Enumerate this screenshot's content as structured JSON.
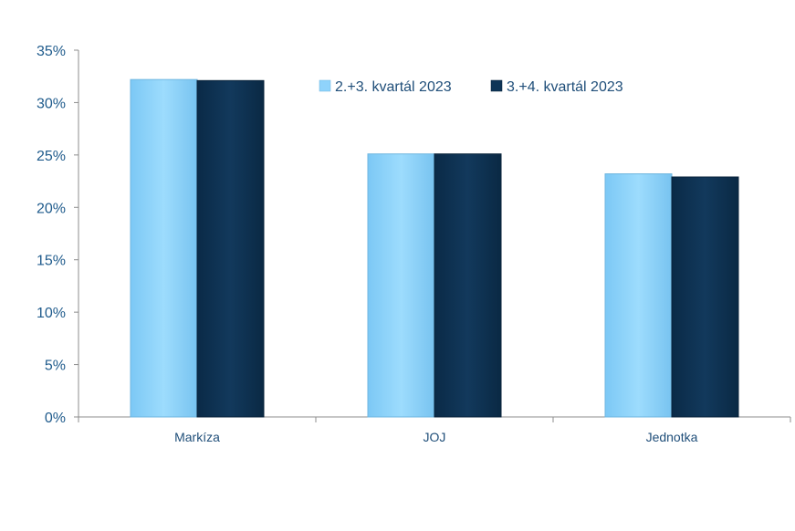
{
  "chart_data": {
    "type": "bar",
    "categories": [
      "Markíza",
      "JOJ",
      "Jednotka"
    ],
    "series": [
      {
        "name": "2.+3. kvartál 2023",
        "values": [
          32.2,
          25.1,
          23.2
        ],
        "color": "#8fd3fb"
      },
      {
        "name": "3.+4. kvartál 2023",
        "values": [
          32.1,
          25.1,
          22.9
        ],
        "color": "#0e3557"
      }
    ],
    "ylim": [
      0,
      35
    ],
    "yticks": [
      "0%",
      "5%",
      "10%",
      "15%",
      "20%",
      "25%",
      "30%",
      "35%"
    ],
    "ytick_values": [
      0,
      5,
      10,
      15,
      20,
      25,
      30,
      35
    ],
    "legend_position": "top-right",
    "grid": false
  }
}
